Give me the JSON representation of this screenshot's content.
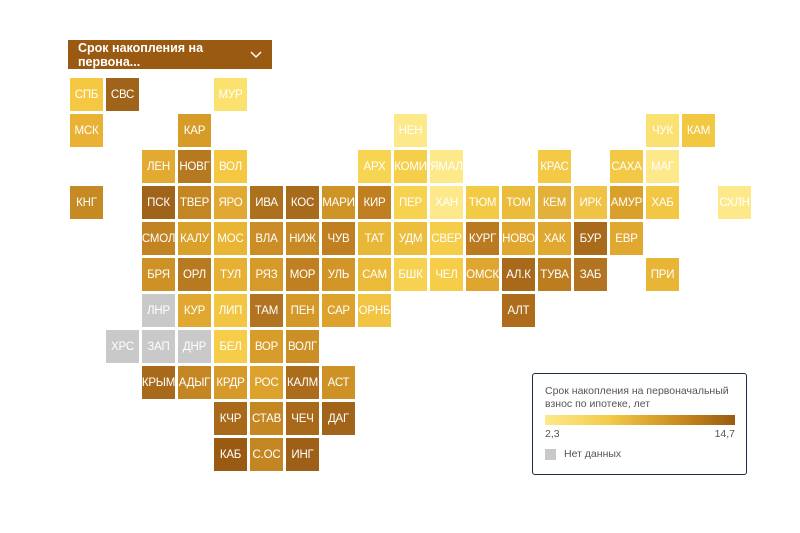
{
  "dropdown": {
    "label": "Срок накопления на первона...",
    "icon": "chevron-down-icon"
  },
  "legend": {
    "title": "Срок накопления на первоначальный взнос по ипотеке, лет",
    "min_label": "2,3",
    "max_label": "14,7",
    "no_data_label": "Нет данных",
    "colors": {
      "low": "#fde98a",
      "high": "#9a5a12",
      "no_data": "#c9c9c9"
    }
  },
  "regions": [
    {
      "code": "СПБ",
      "row": 0,
      "col": 0,
      "color": "#f5c842"
    },
    {
      "code": "СВС",
      "row": 0,
      "col": 1,
      "color": "#a0631a"
    },
    {
      "code": "МУР",
      "row": 0,
      "col": 4,
      "color": "#fbe16e"
    },
    {
      "code": "МСК",
      "row": 1,
      "col": 0,
      "color": "#e9b235"
    },
    {
      "code": "КАР",
      "row": 1,
      "col": 3,
      "color": "#d79c28"
    },
    {
      "code": "НЕН",
      "row": 1,
      "col": 9,
      "color": "#fde98a"
    },
    {
      "code": "ЧУК",
      "row": 1,
      "col": 16,
      "color": "#fbe072"
    },
    {
      "code": "КАМ",
      "row": 1,
      "col": 17,
      "color": "#f2c741"
    },
    {
      "code": "ЛЕН",
      "row": 2,
      "col": 2,
      "color": "#e2aa31"
    },
    {
      "code": "НОВГ",
      "row": 2,
      "col": 3,
      "color": "#b6791f"
    },
    {
      "code": "ВОЛ",
      "row": 2,
      "col": 4,
      "color": "#f4c843"
    },
    {
      "code": "АРХ",
      "row": 2,
      "col": 8,
      "color": "#f7d552"
    },
    {
      "code": "КОМИ",
      "row": 2,
      "col": 9,
      "color": "#f6cf4a"
    },
    {
      "code": "ЯМАЛ",
      "row": 2,
      "col": 10,
      "color": "#fde98a"
    },
    {
      "code": "КРАС",
      "row": 2,
      "col": 13,
      "color": "#f3c946"
    },
    {
      "code": "САХА",
      "row": 2,
      "col": 15,
      "color": "#f2c844"
    },
    {
      "code": "МАГ",
      "row": 2,
      "col": 16,
      "color": "#fde98a"
    },
    {
      "code": "КНГ",
      "row": 3,
      "col": 0,
      "color": "#c68a24"
    },
    {
      "code": "ПСК",
      "row": 3,
      "col": 2,
      "color": "#a0631a"
    },
    {
      "code": "ТВЕР",
      "row": 3,
      "col": 3,
      "color": "#c48622"
    },
    {
      "code": "ЯРО",
      "row": 3,
      "col": 4,
      "color": "#e1a931"
    },
    {
      "code": "ИВА",
      "row": 3,
      "col": 5,
      "color": "#ad701d"
    },
    {
      "code": "КОС",
      "row": 3,
      "col": 6,
      "color": "#a86b1b"
    },
    {
      "code": "МАРИ",
      "row": 3,
      "col": 7,
      "color": "#cf9426"
    },
    {
      "code": "КИР",
      "row": 3,
      "col": 8,
      "color": "#c07f20"
    },
    {
      "code": "ПЕР",
      "row": 3,
      "col": 9,
      "color": "#f6d24e"
    },
    {
      "code": "ХАН",
      "row": 3,
      "col": 10,
      "color": "#fde98a"
    },
    {
      "code": "ТЮМ",
      "row": 3,
      "col": 11,
      "color": "#f3ca44"
    },
    {
      "code": "ТОМ",
      "row": 3,
      "col": 12,
      "color": "#ebbc3b"
    },
    {
      "code": "КЕМ",
      "row": 3,
      "col": 13,
      "color": "#e3b03a"
    },
    {
      "code": "ИРК",
      "row": 3,
      "col": 14,
      "color": "#f0c245"
    },
    {
      "code": "АМУР",
      "row": 3,
      "col": 15,
      "color": "#d9a02a"
    },
    {
      "code": "ХАБ",
      "row": 3,
      "col": 16,
      "color": "#f2c743"
    },
    {
      "code": "СХЛН",
      "row": 3,
      "col": 18,
      "color": "#fde98a"
    },
    {
      "code": "СМОЛ",
      "row": 4,
      "col": 2,
      "color": "#c28322"
    },
    {
      "code": "КАЛУ",
      "row": 4,
      "col": 3,
      "color": "#d9a02a"
    },
    {
      "code": "МОС",
      "row": 4,
      "col": 4,
      "color": "#e8b534"
    },
    {
      "code": "ВЛА",
      "row": 4,
      "col": 5,
      "color": "#cb8d25"
    },
    {
      "code": "НИЖ",
      "row": 4,
      "col": 6,
      "color": "#c68924"
    },
    {
      "code": "ЧУВ",
      "row": 4,
      "col": 7,
      "color": "#c08021"
    },
    {
      "code": "ТАТ",
      "row": 4,
      "col": 8,
      "color": "#e9b737"
    },
    {
      "code": "УДМ",
      "row": 4,
      "col": 9,
      "color": "#edbd3e"
    },
    {
      "code": "СВЕР",
      "row": 4,
      "col": 10,
      "color": "#f5cd48"
    },
    {
      "code": "КУРГ",
      "row": 4,
      "col": 11,
      "color": "#ba7a20"
    },
    {
      "code": "НОВО",
      "row": 4,
      "col": 12,
      "color": "#dfa630"
    },
    {
      "code": "ХАК",
      "row": 4,
      "col": 13,
      "color": "#dfa931"
    },
    {
      "code": "БУР",
      "row": 4,
      "col": 14,
      "color": "#a96a1c"
    },
    {
      "code": "ЕВР",
      "row": 4,
      "col": 15,
      "color": "#e0a830"
    },
    {
      "code": "БРЯ",
      "row": 5,
      "col": 2,
      "color": "#cd9126"
    },
    {
      "code": "ОРЛ",
      "row": 5,
      "col": 3,
      "color": "#b87a21"
    },
    {
      "code": "ТУЛ",
      "row": 5,
      "col": 4,
      "color": "#e6b033"
    },
    {
      "code": "РЯЗ",
      "row": 5,
      "col": 5,
      "color": "#d59a29"
    },
    {
      "code": "МОР",
      "row": 5,
      "col": 6,
      "color": "#c08021"
    },
    {
      "code": "УЛЬ",
      "row": 5,
      "col": 7,
      "color": "#d29628"
    },
    {
      "code": "САМ",
      "row": 5,
      "col": 8,
      "color": "#ebba39"
    },
    {
      "code": "БШК",
      "row": 5,
      "col": 9,
      "color": "#f7d251"
    },
    {
      "code": "ЧЕЛ",
      "row": 5,
      "col": 10,
      "color": "#f5cd48"
    },
    {
      "code": "ОМСК",
      "row": 5,
      "col": 11,
      "color": "#dea630"
    },
    {
      "code": "АЛ.К",
      "row": 5,
      "col": 12,
      "color": "#a8691b"
    },
    {
      "code": "ТУВА",
      "row": 5,
      "col": 13,
      "color": "#bc7d21"
    },
    {
      "code": "ЗАБ",
      "row": 5,
      "col": 14,
      "color": "#b27420"
    },
    {
      "code": "ПРИ",
      "row": 5,
      "col": 16,
      "color": "#e8b536"
    },
    {
      "code": "ЛНР",
      "row": 6,
      "col": 2,
      "color": "#c9c9c9"
    },
    {
      "code": "КУР",
      "row": 6,
      "col": 3,
      "color": "#e0a830"
    },
    {
      "code": "ЛИП",
      "row": 6,
      "col": 4,
      "color": "#f2c643"
    },
    {
      "code": "ТАМ",
      "row": 6,
      "col": 5,
      "color": "#b27420"
    },
    {
      "code": "ПЕН",
      "row": 6,
      "col": 6,
      "color": "#d49928"
    },
    {
      "code": "САР",
      "row": 6,
      "col": 7,
      "color": "#dca22c"
    },
    {
      "code": "ОРНБ",
      "row": 6,
      "col": 8,
      "color": "#f1c444"
    },
    {
      "code": "АЛТ",
      "row": 6,
      "col": 12,
      "color": "#ad6d1c"
    },
    {
      "code": "ХРС",
      "row": 7,
      "col": 1,
      "color": "#c9c9c9"
    },
    {
      "code": "ЗАП",
      "row": 7,
      "col": 2,
      "color": "#c9c9c9"
    },
    {
      "code": "ДНР",
      "row": 7,
      "col": 3,
      "color": "#c9c9c9"
    },
    {
      "code": "БЕЛ",
      "row": 7,
      "col": 4,
      "color": "#f5cd48"
    },
    {
      "code": "ВОР",
      "row": 7,
      "col": 5,
      "color": "#d79c2a"
    },
    {
      "code": "ВОЛГ",
      "row": 7,
      "col": 6,
      "color": "#cc8f25"
    },
    {
      "code": "КРЫМ",
      "row": 8,
      "col": 2,
      "color": "#a9691b"
    },
    {
      "code": "АДЫГ",
      "row": 8,
      "col": 3,
      "color": "#c48622"
    },
    {
      "code": "КРДР",
      "row": 8,
      "col": 4,
      "color": "#d59a29"
    },
    {
      "code": "РОС",
      "row": 8,
      "col": 5,
      "color": "#dca22c"
    },
    {
      "code": "КАЛМ",
      "row": 8,
      "col": 6,
      "color": "#ab6c1c"
    },
    {
      "code": "АСТ",
      "row": 8,
      "col": 7,
      "color": "#ce9126"
    },
    {
      "code": "КЧР",
      "row": 9,
      "col": 4,
      "color": "#a9691b"
    },
    {
      "code": "СТАВ",
      "row": 9,
      "col": 5,
      "color": "#c58722"
    },
    {
      "code": "ЧЕЧ",
      "row": 9,
      "col": 6,
      "color": "#a9691b"
    },
    {
      "code": "ДАГ",
      "row": 9,
      "col": 7,
      "color": "#a26419"
    },
    {
      "code": "КАБ",
      "row": 10,
      "col": 4,
      "color": "#9a5a12"
    },
    {
      "code": "С.ОС",
      "row": 10,
      "col": 5,
      "color": "#c48622"
    },
    {
      "code": "ИНГ",
      "row": 10,
      "col": 6,
      "color": "#9e5f16"
    }
  ]
}
